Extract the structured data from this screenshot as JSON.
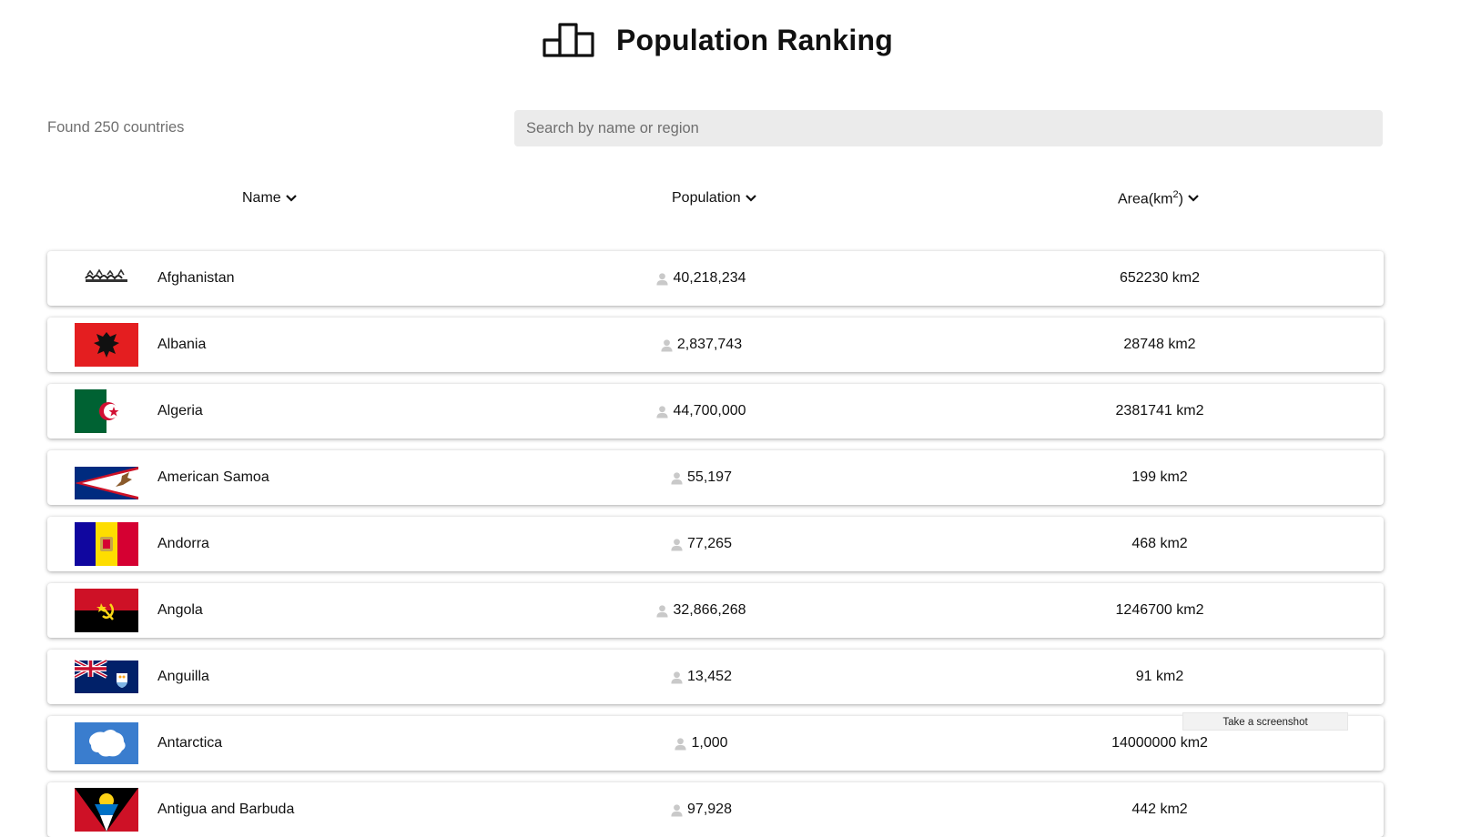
{
  "header": {
    "title": "Population Ranking",
    "icon": "podium-icon"
  },
  "summary": {
    "found_text": "Found 250 countries"
  },
  "search": {
    "placeholder": "Search by name or region",
    "value": ""
  },
  "columns": {
    "name": "Name",
    "population": "Population",
    "area_prefix": "Area(km",
    "area_sup": "2",
    "area_suffix": ")"
  },
  "countries": [
    {
      "name": "Afghanistan",
      "population": "40,218,234",
      "area": "652230 km2",
      "flag": "afghanistan-flag"
    },
    {
      "name": "Albania",
      "population": "2,837,743",
      "area": "28748 km2",
      "flag": "albania-flag"
    },
    {
      "name": "Algeria",
      "population": "44,700,000",
      "area": "2381741 km2",
      "flag": "algeria-flag"
    },
    {
      "name": "American Samoa",
      "population": "55,197",
      "area": "199 km2",
      "flag": "american-samoa-flag"
    },
    {
      "name": "Andorra",
      "population": "77,265",
      "area": "468 km2",
      "flag": "andorra-flag"
    },
    {
      "name": "Angola",
      "population": "32,866,268",
      "area": "1246700 km2",
      "flag": "angola-flag"
    },
    {
      "name": "Anguilla",
      "population": "13,452",
      "area": "91 km2",
      "flag": "anguilla-flag"
    },
    {
      "name": "Antarctica",
      "population": "1,000",
      "area": "14000000 km2",
      "flag": "antarctica-flag"
    },
    {
      "name": "Antigua and Barbuda",
      "population": "97,928",
      "area": "442 km2",
      "flag": "antigua-and-barbuda-flag"
    }
  ],
  "tooltip": {
    "text": "Take a screenshot"
  },
  "colors": {
    "search_bg": "#ebebeb",
    "muted_text": "#707070",
    "person_icon": "#c9c9c9"
  }
}
